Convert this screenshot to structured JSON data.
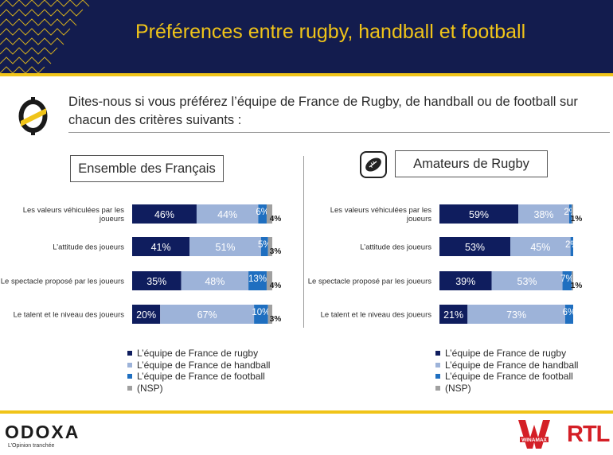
{
  "header": {
    "title": "Préférences entre rugby, handball et football"
  },
  "question": "Dites-nous si vous préférez l’équipe de France de Rugby, de handball ou de football sur chacun des critères suivants :",
  "colors": {
    "rugby": "#0f1d5e",
    "handball": "#9db3d9",
    "football": "#1f6fc0",
    "nsp": "#a0a0a0",
    "accent": "#f0c419",
    "navy": "#131c4e"
  },
  "chart_data": [
    {
      "type": "bar",
      "orientation": "horizontal",
      "stacked": true,
      "title": "Ensemble des Français",
      "categories": [
        "Les valeurs véhiculées par les joueurs",
        "L’attitude des joueurs",
        "Le spectacle proposé par les joueurs",
        "Le talent et le niveau des joueurs"
      ],
      "series": [
        {
          "name": "L’équipe de France de rugby",
          "values": [
            46,
            41,
            35,
            20
          ]
        },
        {
          "name": "L’équipe de France de handball",
          "values": [
            44,
            51,
            48,
            67
          ]
        },
        {
          "name": "L’équipe de France de football",
          "values": [
            6,
            5,
            13,
            10
          ]
        },
        {
          "name": "(NSP)",
          "values": [
            4,
            3,
            4,
            3
          ]
        }
      ],
      "xlim": [
        0,
        100
      ],
      "legend": "bottom"
    },
    {
      "type": "bar",
      "orientation": "horizontal",
      "stacked": true,
      "title": "Amateurs de Rugby",
      "categories": [
        "Les valeurs véhiculées par les joueurs",
        "L’attitude des joueurs",
        "Le spectacle proposé par les joueurs",
        "Le talent et le niveau des joueurs"
      ],
      "series": [
        {
          "name": "L’équipe de France de rugby",
          "values": [
            59,
            53,
            39,
            21
          ]
        },
        {
          "name": "L’équipe de France de handball",
          "values": [
            38,
            45,
            53,
            73
          ]
        },
        {
          "name": "L’équipe de France de football",
          "values": [
            2,
            2,
            7,
            6
          ]
        },
        {
          "name": "(NSP)",
          "values": [
            1,
            0,
            1,
            0
          ]
        }
      ],
      "xlim": [
        0,
        100
      ],
      "legend": "bottom"
    }
  ],
  "footer": {
    "odoxa": "ODOXA",
    "tagline": "L’Opinion tranchée",
    "winamax": "WINAMAX",
    "rtl": "RTL"
  }
}
